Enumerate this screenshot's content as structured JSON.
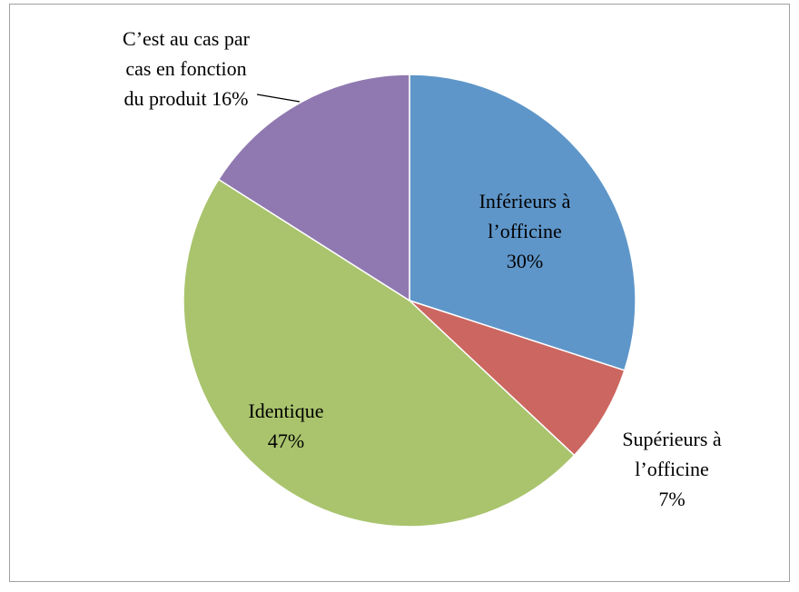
{
  "chart_data": {
    "type": "pie",
    "categories": [
      "Inférieurs à l’officine",
      "Supérieurs à l’officine",
      "Identique",
      "C’est au cas par cas en fonction du produit"
    ],
    "values": [
      30,
      7,
      47,
      16
    ],
    "value_labels": [
      "30%",
      "7%",
      "47%",
      "16%"
    ],
    "colors": [
      "#5f96c9",
      "#cc6660",
      "#a9c46d",
      "#9079b0"
    ]
  }
}
